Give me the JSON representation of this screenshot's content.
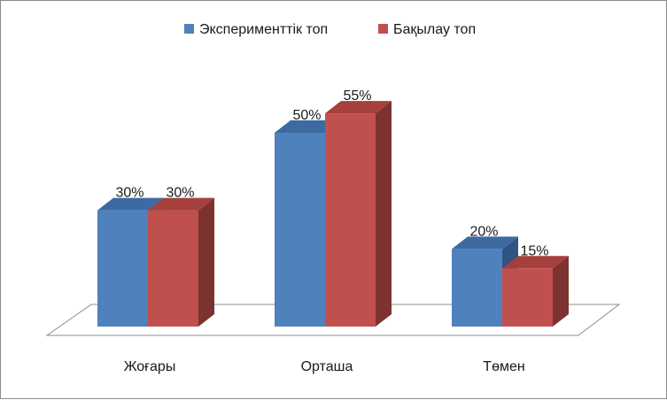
{
  "chart_data": {
    "type": "bar",
    "categories": [
      "Жоғары",
      "Орташа",
      "Төмен"
    ],
    "series": [
      {
        "name": "Эксперименттік топ",
        "values": [
          30,
          50,
          20
        ],
        "labels": [
          "30%",
          "50%",
          "20%"
        ],
        "color": "#4f81bd",
        "top_color": "#3d6aa0",
        "side_color": "#2f5582"
      },
      {
        "name": "Бақылау топ",
        "values": [
          30,
          55,
          15
        ],
        "labels": [
          "30%",
          "55%",
          "15%"
        ],
        "color": "#c0504d",
        "top_color": "#a6403d",
        "side_color": "#7c3230"
      }
    ],
    "ylim": [
      0,
      60
    ],
    "legend_position": "top",
    "grid": false,
    "three_d": true
  }
}
